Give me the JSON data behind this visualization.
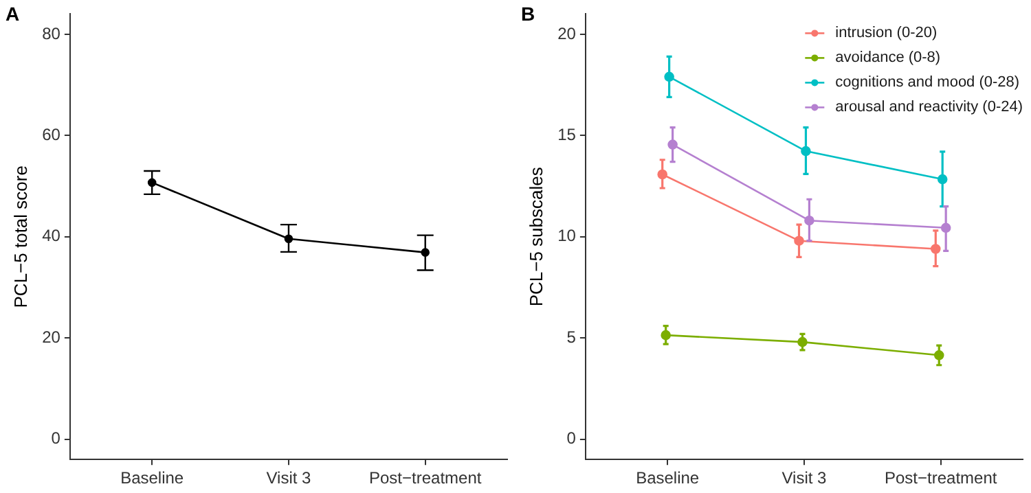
{
  "chart_data": [
    {
      "type": "line",
      "title": "A",
      "ylabel": "PCL−5 total score",
      "categories": [
        "Baseline",
        "Visit 3",
        "Post−treatment"
      ],
      "values": [
        50.7,
        39.6,
        36.9
      ],
      "errors": [
        [
          48.4,
          53.0
        ],
        [
          37.0,
          42.4
        ],
        [
          33.4,
          40.3
        ]
      ],
      "color": "#000000",
      "ylim": [
        -4,
        84
      ],
      "yticks": [
        0,
        20,
        40,
        60,
        80
      ],
      "marker": "circle"
    },
    {
      "type": "line",
      "title": "B",
      "ylabel": "PCL−5 subscales",
      "categories": [
        "Baseline",
        "Visit 3",
        "Post−treatment"
      ],
      "ylim": [
        -1,
        21
      ],
      "yticks": [
        0,
        5,
        10,
        15,
        20
      ],
      "marker": "circle",
      "legend": "top right",
      "series": [
        {
          "name": "intrusion (0-20)",
          "color": "#f8766d",
          "values": [
            13.08,
            9.8,
            9.4
          ],
          "errors": [
            [
              12.4,
              13.8
            ],
            [
              9.0,
              10.6
            ],
            [
              8.55,
              10.3
            ]
          ]
        },
        {
          "name": "avoidance (0-8)",
          "color": "#7cae00",
          "values": [
            5.14,
            4.8,
            4.15
          ],
          "errors": [
            [
              4.7,
              5.6
            ],
            [
              4.4,
              5.2
            ],
            [
              3.66,
              4.63
            ]
          ]
        },
        {
          "name": "cognitions and mood (0-28)",
          "color": "#00bfc4",
          "values": [
            17.9,
            14.23,
            12.84
          ],
          "errors": [
            [
              16.9,
              18.9
            ],
            [
              13.1,
              15.4
            ],
            [
              11.5,
              14.2
            ]
          ]
        },
        {
          "name": "arousal and reactivity (0-24)",
          "color": "#b580d0",
          "values": [
            14.55,
            10.8,
            10.44
          ],
          "errors": [
            [
              13.7,
              15.4
            ],
            [
              9.8,
              11.85
            ],
            [
              9.3,
              11.5
            ]
          ]
        }
      ]
    }
  ]
}
